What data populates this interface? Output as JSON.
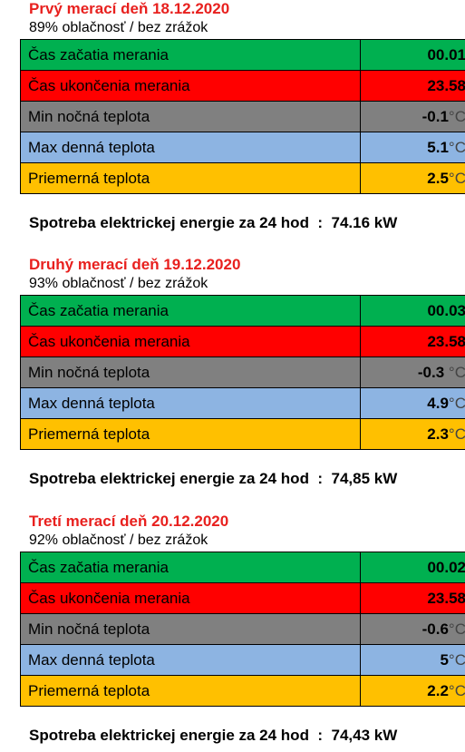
{
  "row_colors": {
    "start": "#00b050",
    "end": "#ff0000",
    "min": "#808080",
    "max": "#8db4e2",
    "avg": "#ffc000"
  },
  "title_color": "#e8201e",
  "days": [
    {
      "title": "Prvý merací deň 18.12.2020",
      "subtitle": "89% oblačnosť / bez zrážok",
      "rows": [
        {
          "label": "Čas začatia merania",
          "value": "00.01",
          "unit": ""
        },
        {
          "label": "Čas ukončenia merania",
          "value": "23.58",
          "unit": ""
        },
        {
          "label": "Min nočná teplota",
          "value": "-0.1",
          "unit": "°C"
        },
        {
          "label": "Max denná teplota",
          "value": "5.1",
          "unit": "°C"
        },
        {
          "label": "Priemerná teplota",
          "value": "2.5",
          "unit": "°C"
        }
      ],
      "energy": "Spotreba elektrickej energie za 24 hod  :  74.16 kW"
    },
    {
      "title": "Druhý merací deň 19.12.2020",
      "subtitle": "93% oblačnosť / bez zrážok",
      "rows": [
        {
          "label": "Čas začatia merania",
          "value": "00.03",
          "unit": ""
        },
        {
          "label": "Čas ukončenia merania",
          "value": "23.58",
          "unit": ""
        },
        {
          "label": "Min nočná teplota",
          "value": "-0.3",
          "unit": " °C"
        },
        {
          "label": "Max denná teplota",
          "value": "4.9",
          "unit": "°C"
        },
        {
          "label": "Priemerná teplota",
          "value": "2.3",
          "unit": "°C"
        }
      ],
      "energy": "Spotreba elektrickej energie za 24 hod  :  74,85 kW"
    },
    {
      "title": "Tretí merací deň 20.12.2020",
      "subtitle": "92% oblačnosť / bez zrážok",
      "rows": [
        {
          "label": "Čas začatia merania",
          "value": "00.02",
          "unit": ""
        },
        {
          "label": "Čas ukončenia merania",
          "value": "23.58",
          "unit": ""
        },
        {
          "label": "Min nočná teplota",
          "value": "-0.6",
          "unit": "°C"
        },
        {
          "label": "Max denná teplota",
          "value": "5",
          "unit": "°C"
        },
        {
          "label": "Priemerná teplota",
          "value": "2.2",
          "unit": "°C"
        }
      ],
      "energy": "Spotreba elektrickej energie za 24 hod  :  74,43 kW"
    }
  ]
}
